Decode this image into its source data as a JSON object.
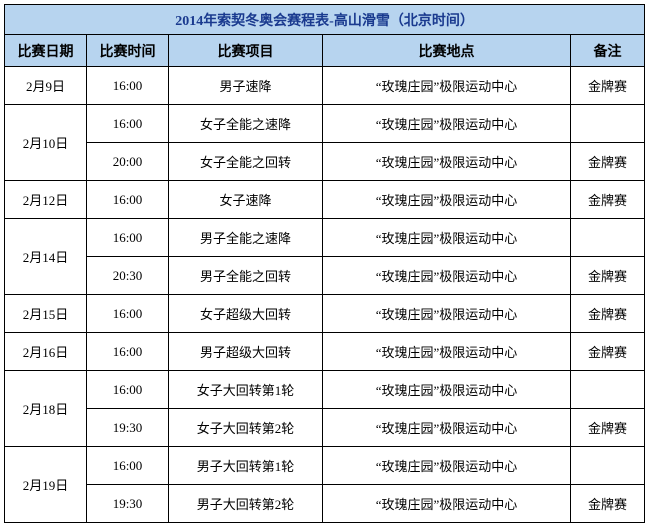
{
  "title": "2014年索契冬奥会赛程表-高山滑雪（北京时间）",
  "columns": [
    "比赛日期",
    "比赛时间",
    "比赛项目",
    "比赛地点",
    "备注"
  ],
  "colors": {
    "header_bg": "#b7d4ef",
    "title_text": "#1a3a8f",
    "border": "#000000"
  },
  "rows": [
    {
      "date": "2月9日",
      "rowspan": 1,
      "time": "16:00",
      "event": "男子速降",
      "venue": "“玫瑰庄园”极限运动中心",
      "note": "金牌赛"
    },
    {
      "date": "2月10日",
      "rowspan": 2,
      "time": "16:00",
      "event": "女子全能之速降",
      "venue": "“玫瑰庄园”极限运动中心",
      "note": ""
    },
    {
      "date": "",
      "rowspan": 0,
      "time": "20:00",
      "event": "女子全能之回转",
      "venue": "“玫瑰庄园”极限运动中心",
      "note": "金牌赛"
    },
    {
      "date": "2月12日",
      "rowspan": 1,
      "time": "16:00",
      "event": "女子速降",
      "venue": "“玫瑰庄园”极限运动中心",
      "note": "金牌赛"
    },
    {
      "date": "2月14日",
      "rowspan": 2,
      "time": "16:00",
      "event": "男子全能之速降",
      "venue": "“玫瑰庄园”极限运动中心",
      "note": ""
    },
    {
      "date": "",
      "rowspan": 0,
      "time": "20:30",
      "event": "男子全能之回转",
      "venue": "“玫瑰庄园”极限运动中心",
      "note": "金牌赛"
    },
    {
      "date": "2月15日",
      "rowspan": 1,
      "time": "16:00",
      "event": "女子超级大回转",
      "venue": "“玫瑰庄园”极限运动中心",
      "note": "金牌赛"
    },
    {
      "date": "2月16日",
      "rowspan": 1,
      "time": "16:00",
      "event": "男子超级大回转",
      "venue": "“玫瑰庄园”极限运动中心",
      "note": "金牌赛"
    },
    {
      "date": "2月18日",
      "rowspan": 2,
      "time": "16:00",
      "event": "女子大回转第1轮",
      "venue": "“玫瑰庄园”极限运动中心",
      "note": ""
    },
    {
      "date": "",
      "rowspan": 0,
      "time": "19:30",
      "event": "女子大回转第2轮",
      "venue": "“玫瑰庄园”极限运动中心",
      "note": "金牌赛"
    },
    {
      "date": "2月19日",
      "rowspan": 2,
      "time": "16:00",
      "event": "男子大回转第1轮",
      "venue": "“玫瑰庄园”极限运动中心",
      "note": ""
    },
    {
      "date": "",
      "rowspan": 0,
      "time": "19:30",
      "event": "男子大回转第2轮",
      "venue": "“玫瑰庄园”极限运动中心",
      "note": "金牌赛"
    }
  ]
}
